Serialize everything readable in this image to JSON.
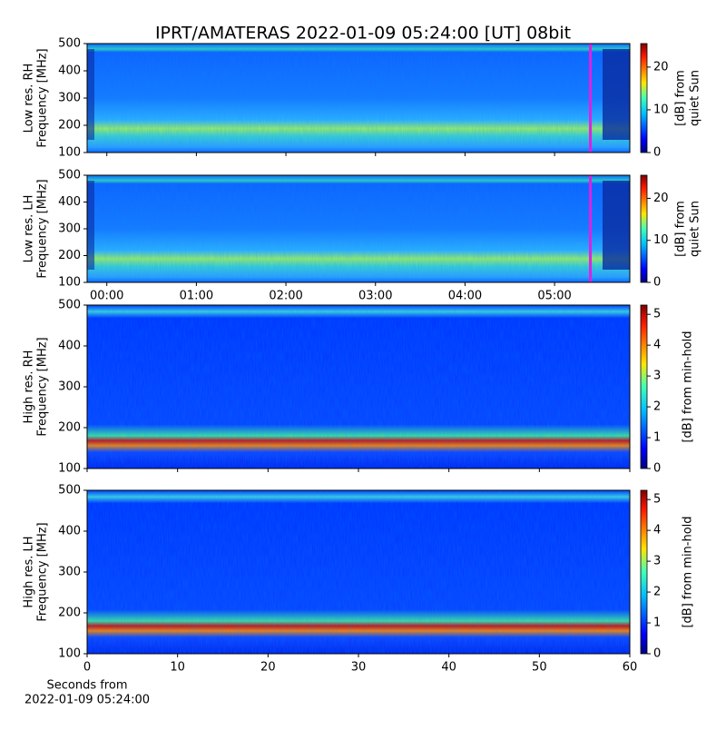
{
  "title": "IPRT/AMATERAS 2022-01-09 05:24:00 [UT]   08bit",
  "chart_data": [
    {
      "type": "spectrogram",
      "ylabel": [
        "Low res. RH",
        "Frequency [MHz]"
      ],
      "ylim": [
        100,
        500
      ],
      "yticks": [
        100,
        200,
        300,
        400,
        500
      ],
      "xlim": [
        -0.22,
        5.84
      ],
      "colormap": "jet",
      "highlight_x": 5.4,
      "highlight_color": "#e020e0",
      "colorbar": {
        "label": [
          "[dB] from",
          "quiet Sun"
        ],
        "lim": [
          0,
          25.5
        ],
        "ticks": [
          0,
          10,
          20
        ]
      }
    },
    {
      "type": "spectrogram",
      "ylabel": [
        "Low res. LH",
        "Frequency [MHz]"
      ],
      "ylim": [
        100,
        500
      ],
      "yticks": [
        100,
        200,
        300,
        400,
        500
      ],
      "xlim": [
        -0.22,
        5.84
      ],
      "xticks": [
        {
          "value": 0,
          "label": "00:00"
        },
        {
          "value": 1,
          "label": "01:00"
        },
        {
          "value": 2,
          "label": "02:00"
        },
        {
          "value": 3,
          "label": "03:00"
        },
        {
          "value": 4,
          "label": "04:00"
        },
        {
          "value": 5,
          "label": "05:00"
        }
      ],
      "colormap": "jet",
      "highlight_x": 5.4,
      "highlight_color": "#e020e0",
      "colorbar": {
        "label": [
          "[dB] from",
          "quiet Sun"
        ],
        "lim": [
          0,
          25.5
        ],
        "ticks": [
          0,
          10,
          20
        ]
      }
    },
    {
      "type": "spectrogram",
      "ylabel": [
        "High res. RH",
        "Frequency [MHz]"
      ],
      "ylim": [
        100,
        500
      ],
      "yticks": [
        100,
        200,
        300,
        400,
        500
      ],
      "xlim": [
        0,
        60
      ],
      "colormap": "jet",
      "colorbar": {
        "label": [
          "[dB] from min-hold"
        ],
        "lim": [
          0,
          5.3
        ],
        "ticks": [
          0,
          1,
          2,
          3,
          4,
          5
        ]
      }
    },
    {
      "type": "spectrogram",
      "ylabel": [
        "High res. LH",
        "Frequency [MHz]"
      ],
      "ylim": [
        100,
        500
      ],
      "yticks": [
        100,
        200,
        300,
        400,
        500
      ],
      "xlim": [
        0,
        60
      ],
      "xticks": [
        0,
        10,
        20,
        30,
        40,
        50,
        60
      ],
      "xlabel": [
        "Seconds from",
        "2022-01-09 05:24:00"
      ],
      "colormap": "jet",
      "colorbar": {
        "label": [
          "[dB] from min-hold"
        ],
        "lim": [
          0,
          5.3
        ],
        "ticks": [
          0,
          1,
          2,
          3,
          4,
          5
        ]
      }
    }
  ]
}
